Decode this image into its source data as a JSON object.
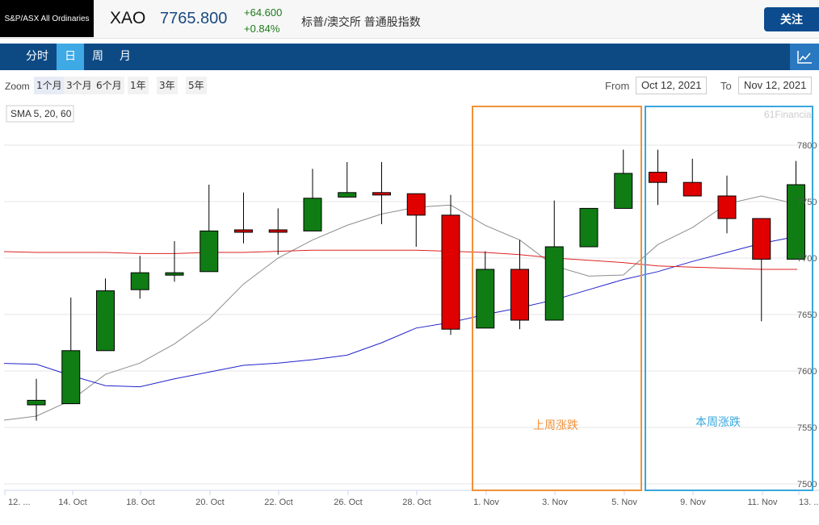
{
  "header": {
    "logo_text": "S&P/ASX All Ordinaries",
    "code": "XAO",
    "price": "7765.800",
    "change": "+64.600",
    "change_pct": "+0.84%",
    "exchange_name": "标普/澳交所 普通股指数",
    "follow_label": "关注"
  },
  "nav": {
    "tabs": [
      "分时",
      "日",
      "周",
      "月"
    ],
    "active_tab": "日",
    "chart_icon": "line-chart-icon"
  },
  "zoom": {
    "label": "Zoom",
    "options": [
      "1个月",
      "3个月",
      "6个月",
      "1年",
      "3年",
      "5年"
    ],
    "active": "1个月",
    "from_label": "From",
    "from_value": "Oct 12, 2021",
    "to_label": "To",
    "to_value": "Nov 12, 2021"
  },
  "chart": {
    "sma_label": "SMA 5, 20, 60",
    "watermark": "61Financial",
    "annotation_last_week": "上周涨跌",
    "annotation_this_week": "本周涨跌",
    "colors": {
      "up": "#0f7d14",
      "down": "#e00000",
      "sma5": "#8c8c8c",
      "sma20": "#2222cc",
      "sma60": "#dd2222",
      "last_week_box": "#f0913a",
      "this_week_box": "#37a7dd"
    }
  },
  "chart_data": {
    "type": "candlestick",
    "ylim": [
      7500,
      7820
    ],
    "yticks": [
      7500,
      7550,
      7600,
      7650,
      7700,
      7750,
      7800
    ],
    "ytick_labels": [
      "7500",
      "7550",
      "7600",
      "7650",
      "7700",
      "7750",
      "7800"
    ],
    "x_tick_labels": [
      "12. ...",
      "14. Oct",
      "18. Oct",
      "20. Oct",
      "22. Oct",
      "26. Oct",
      "28. Oct",
      "1. Nov",
      "3. Nov",
      "5. Nov",
      "9. Nov",
      "11. Nov",
      "13. ..."
    ],
    "candles": [
      {
        "open": 7570,
        "close": 7574,
        "high": 7593,
        "low": 7556
      },
      {
        "open": 7571,
        "close": 7618,
        "high": 7665,
        "low": 7571
      },
      {
        "open": 7618,
        "close": 7671,
        "high": 7682,
        "low": 7618
      },
      {
        "open": 7672,
        "close": 7687,
        "high": 7702,
        "low": 7664
      },
      {
        "open": 7687,
        "close": 7687,
        "high": 7715,
        "low": 7679
      },
      {
        "open": 7688,
        "close": 7724,
        "high": 7765,
        "low": 7688
      },
      {
        "open": 7725,
        "close": 7724,
        "high": 7758,
        "low": 7713
      },
      {
        "open": 7725,
        "close": 7724,
        "high": 7744,
        "low": 7703
      },
      {
        "open": 7724,
        "close": 7753,
        "high": 7779,
        "low": 7724
      },
      {
        "open": 7754,
        "close": 7758,
        "high": 7785,
        "low": 7754
      },
      {
        "open": 7758,
        "close": 7756,
        "high": 7785,
        "low": 7730
      },
      {
        "open": 7757,
        "close": 7738,
        "high": 7757,
        "low": 7710
      },
      {
        "open": 7738,
        "close": 7637,
        "high": 7756,
        "low": 7632
      },
      {
        "open": 7638,
        "close": 7690,
        "high": 7706,
        "low": 7638
      },
      {
        "open": 7690,
        "close": 7645,
        "high": 7716,
        "low": 7637
      },
      {
        "open": 7645,
        "close": 7710,
        "high": 7751,
        "low": 7645
      },
      {
        "open": 7710,
        "close": 7744,
        "high": 7744,
        "low": 7710
      },
      {
        "open": 7744,
        "close": 7775,
        "high": 7796,
        "low": 7744
      },
      {
        "open": 7776,
        "close": 7767,
        "high": 7796,
        "low": 7747
      },
      {
        "open": 7767,
        "close": 7755,
        "high": 7788,
        "low": 7755
      },
      {
        "open": 7755,
        "close": 7735,
        "high": 7773,
        "low": 7722
      },
      {
        "open": 7735,
        "close": 7699,
        "high": 7735,
        "low": 7644
      },
      {
        "open": 7699,
        "close": 7765,
        "high": 7786,
        "low": 7699
      }
    ],
    "series": [
      {
        "name": "SMA 5",
        "values": [
          7560,
          7574,
          7597,
          7607,
          7624,
          7646,
          7677,
          7700,
          7716,
          7729,
          7739,
          7745,
          7747,
          7729,
          7716,
          7693,
          7684,
          7685,
          7712,
          7727,
          7748,
          7755,
          7748
        ]
      },
      {
        "name": "SMA 20",
        "values": [
          7606,
          7596,
          7587,
          7586,
          7593,
          7599,
          7605,
          7607,
          7610,
          7614,
          7625,
          7638,
          7643,
          7650,
          7656,
          7663,
          7672,
          7681,
          7688,
          7697,
          7705,
          7713,
          7719
        ]
      },
      {
        "name": "SMA 60",
        "values": [
          7705,
          7705,
          7705,
          7704,
          7704,
          7705,
          7705,
          7706,
          7707,
          7707,
          7707,
          7707,
          7706,
          7705,
          7703,
          7700,
          7698,
          7696,
          7693,
          7692,
          7691,
          7690,
          7690
        ]
      }
    ]
  }
}
